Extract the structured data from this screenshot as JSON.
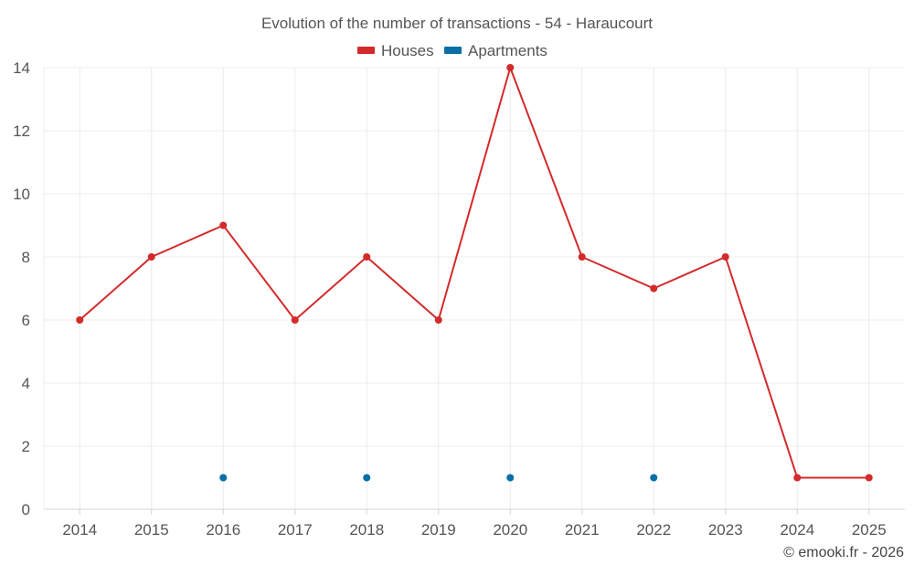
{
  "chart_data": {
    "type": "line",
    "title": "Evolution of the number of transactions - 54 - Haraucourt",
    "categories": [
      "2014",
      "2015",
      "2016",
      "2017",
      "2018",
      "2019",
      "2020",
      "2021",
      "2022",
      "2023",
      "2024",
      "2025"
    ],
    "series": [
      {
        "name": "Houses",
        "color": "#d32a2a",
        "values": [
          6,
          8,
          9,
          6,
          8,
          6,
          14,
          8,
          7,
          8,
          1,
          1
        ]
      },
      {
        "name": "Apartments",
        "color": "#0a6fa6",
        "values": [
          null,
          null,
          1,
          null,
          1,
          null,
          1,
          null,
          1,
          null,
          null,
          null
        ]
      }
    ],
    "ylim": [
      0,
      14
    ],
    "yticks": [
      0,
      2,
      4,
      6,
      8,
      10,
      12,
      14
    ],
    "xlabel": "",
    "ylabel": "",
    "grid": true,
    "legend_position": "top-center"
  },
  "credit": "© emooki.fr - 2026"
}
